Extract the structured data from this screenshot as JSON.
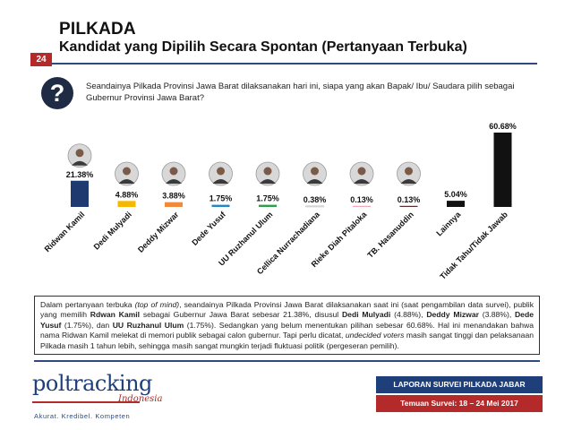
{
  "header": {
    "title": "PILKADA",
    "subtitle": "Kandidat yang Dipilih Secara Spontan (Pertanyaan Terbuka)",
    "page_number": "24"
  },
  "question": {
    "icon": "question-mark-icon",
    "text": "Seandainya Pilkada Provinsi Jawa Barat dilaksanakan hari ini, siapa yang akan Bapak/ Ibu/ Saudara pilih sebagai Gubernur Provinsi Jawa Barat?"
  },
  "chart_data": {
    "type": "bar",
    "categories": [
      "Ridwan Kamil",
      "Dedi Mulyadi",
      "Deddy Mizwar",
      "Dede Yusuf",
      "UU Ruzhanul Ulum",
      "Cellica Nurrachadiana",
      "Rieke Diah Pitaloka",
      "TB. Hasanuddin",
      "Lainnya",
      "Tidak Tahu/Tidak Jawab"
    ],
    "values": [
      21.38,
      4.88,
      3.88,
      1.75,
      1.75,
      0.38,
      0.13,
      0.13,
      5.04,
      60.68
    ],
    "value_labels": [
      "21.38%",
      "4.88%",
      "3.88%",
      "1.75%",
      "1.75%",
      "0.38%",
      "0.13%",
      "0.13%",
      "5.04%",
      "60.68%"
    ],
    "bar_colors": [
      "#1f3a6e",
      "#f5b800",
      "#f08a3c",
      "#1e88c8",
      "#2e9e4a",
      "#e0e0e0",
      "#f4a6b4",
      "#5a2d2d",
      "#111111",
      "#111111"
    ],
    "photos": [
      true,
      true,
      true,
      true,
      true,
      true,
      true,
      true,
      false,
      false
    ],
    "ylim": [
      0,
      65
    ]
  },
  "summary": {
    "p1": "Dalam pertanyaan terbuka ",
    "p1_italic": "(top of mind)",
    "p2": ", seandainya Pilkada Provinsi Jawa Barat dilaksanakan saat ini (saat pengambilan data survei), publik yang memilih ",
    "b1": "Rdwan Kamil",
    "p3": " sebagai Gubernur Jawa Barat sebesar 21.38%, disusul ",
    "b2": "Dedi Mulyadi",
    "p4": " (4.88%), ",
    "b3": "Deddy Mizwar",
    "p5": " (3.88%), ",
    "b4": "Dede Yusuf",
    "p6": " (1.75%), dan ",
    "b5": "UU Ruzhanul Ulum",
    "p7": " (1.75%). Sedangkan yang belum menentukan pilihan sebesar 60.68%. Hal ini menandakan bahwa nama Ridwan Kamil melekat di memori publik sebagai calon gubernur. Tapi perlu dicatat, ",
    "i2": "undecided voters",
    "p8": " masih sangat tinggi dan pelaksanaan Pilkada masih 1 tahun lebih, sehingga masih sangat mungkin terjadi fluktuasi politik (pergeseran pemilih)."
  },
  "footer": {
    "logo_text": "poltracking",
    "logo_sub": "Indonesia",
    "tagline": "Akurat. Kredibel. Kompeten",
    "report_title": "LAPORAN SURVEI PILKADA JABAR",
    "report_dates": "Temuan Survei: 18 – 24  Mei 2017"
  }
}
